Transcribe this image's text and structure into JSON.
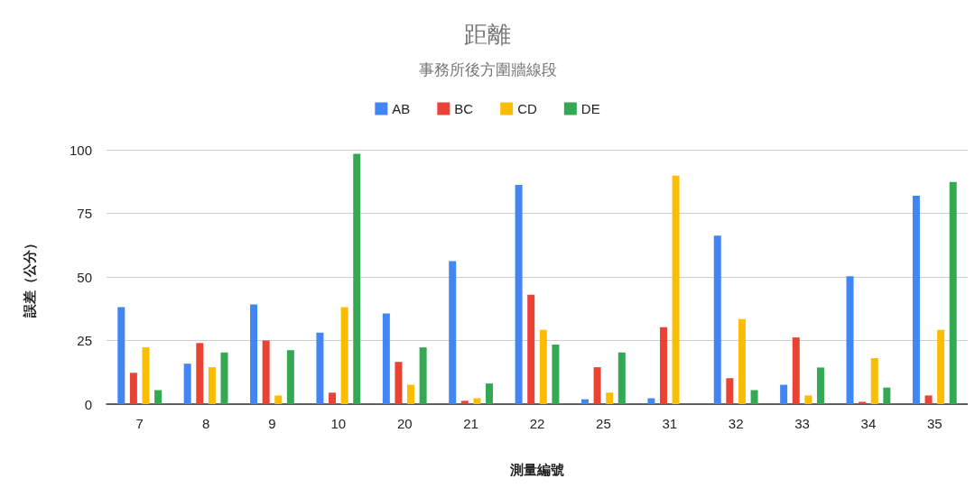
{
  "chart_data": {
    "type": "bar",
    "title": "距離",
    "subtitle": "事務所後方圍牆線段",
    "xlabel": "測量編號",
    "ylabel": "誤差（公分）",
    "categories": [
      "7",
      "8",
      "9",
      "10",
      "20",
      "21",
      "22",
      "25",
      "31",
      "32",
      "33",
      "34",
      "35"
    ],
    "series": [
      {
        "name": "AB",
        "color": "#4285f4",
        "values": [
          38.1,
          15.9,
          39.2,
          28.1,
          35.6,
          56.2,
          86.2,
          1.9,
          2.3,
          66.2,
          7.6,
          50.3,
          81.9
        ]
      },
      {
        "name": "BC",
        "color": "#ea4335",
        "values": [
          12.3,
          24,
          25,
          4.5,
          16.6,
          1.3,
          43,
          14.5,
          30.2,
          10.2,
          26.2,
          0.9,
          3.4
        ]
      },
      {
        "name": "CD",
        "color": "#fbbc04",
        "values": [
          22.3,
          14.5,
          3.4,
          38.1,
          7.6,
          2.3,
          29.2,
          4.5,
          89.8,
          33.4,
          3.4,
          18.1,
          29.2
        ]
      },
      {
        "name": "DE",
        "color": "#34a853",
        "values": [
          5.5,
          20.3,
          21.2,
          98.4,
          22.3,
          8.1,
          23.4,
          20.3,
          null,
          5.5,
          14.4,
          6.5,
          87.3
        ]
      }
    ],
    "ylim": [
      0,
      100
    ],
    "yticks": [
      0,
      25,
      50,
      75,
      100
    ],
    "grid": "y",
    "legend": "top"
  }
}
